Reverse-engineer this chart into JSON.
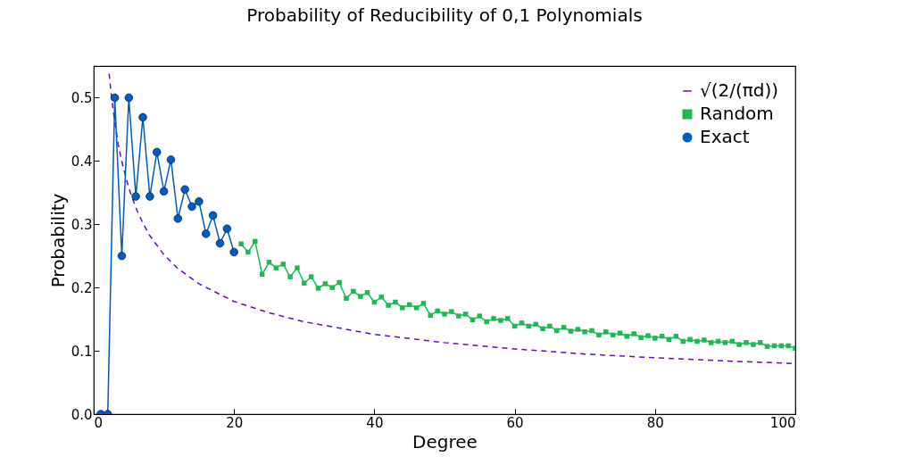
{
  "chart_data": {
    "type": "line",
    "title": "Probability of Reducibility of 0,1 Polynomials",
    "xlabel": "Degree",
    "ylabel": "Probability",
    "xlim": [
      0,
      100
    ],
    "ylim": [
      0,
      0.55
    ],
    "xticks": [
      0,
      20,
      40,
      60,
      80,
      100
    ],
    "yticks": [
      {
        "value": 0,
        "label": "0.0"
      },
      0.1,
      0.2,
      0.3,
      0.4,
      0.5
    ],
    "grid": false,
    "legend": "top right",
    "series": [
      {
        "name": "√(2/(πd))",
        "color": "#6a0dad",
        "marker": "none",
        "line_style": "dashed",
        "x": [
          2.2,
          2.5,
          3,
          3.5,
          4,
          5,
          6,
          7,
          8,
          10,
          12,
          15,
          20,
          25,
          30,
          40,
          50,
          60,
          70,
          80,
          90,
          100
        ],
        "values": [
          0.538,
          0.505,
          0.461,
          0.426,
          0.399,
          0.357,
          0.326,
          0.302,
          0.282,
          0.252,
          0.23,
          0.206,
          0.178,
          0.16,
          0.146,
          0.126,
          0.113,
          0.103,
          0.095,
          0.089,
          0.084,
          0.08
        ]
      },
      {
        "name": "Random",
        "color": "#1db954",
        "marker": "square",
        "line_style": "solid",
        "x": [
          21,
          22,
          23,
          24,
          25,
          26,
          27,
          28,
          29,
          30,
          31,
          32,
          33,
          34,
          35,
          36,
          37,
          38,
          39,
          40,
          41,
          42,
          43,
          44,
          45,
          46,
          47,
          48,
          49,
          50,
          51,
          52,
          53,
          54,
          55,
          56,
          57,
          58,
          59,
          60,
          61,
          62,
          63,
          64,
          65,
          66,
          67,
          68,
          69,
          70,
          71,
          72,
          73,
          74,
          75,
          76,
          77,
          78,
          79,
          80,
          81,
          82,
          83,
          84,
          85,
          86,
          87,
          88,
          89,
          90,
          91,
          92,
          93,
          94,
          95,
          96,
          97,
          98,
          99,
          100
        ],
        "values": [
          0.269,
          0.256,
          0.273,
          0.221,
          0.24,
          0.231,
          0.237,
          0.217,
          0.231,
          0.207,
          0.217,
          0.199,
          0.206,
          0.2,
          0.208,
          0.183,
          0.194,
          0.186,
          0.192,
          0.177,
          0.185,
          0.172,
          0.177,
          0.168,
          0.173,
          0.168,
          0.175,
          0.156,
          0.163,
          0.158,
          0.162,
          0.155,
          0.158,
          0.149,
          0.155,
          0.146,
          0.151,
          0.148,
          0.151,
          0.139,
          0.144,
          0.139,
          0.142,
          0.135,
          0.139,
          0.132,
          0.137,
          0.131,
          0.134,
          0.13,
          0.132,
          0.125,
          0.13,
          0.125,
          0.128,
          0.123,
          0.127,
          0.121,
          0.124,
          0.12,
          0.123,
          0.118,
          0.123,
          0.115,
          0.118,
          0.115,
          0.117,
          0.113,
          0.115,
          0.113,
          0.115,
          0.11,
          0.113,
          0.11,
          0.113,
          0.107,
          0.108,
          0.108,
          0.108,
          0.104
        ]
      },
      {
        "name": "Exact",
        "color": "#005cc5",
        "marker": "circle",
        "line_style": "solid",
        "x": [
          1,
          2,
          3,
          4,
          5,
          6,
          7,
          8,
          9,
          10,
          11,
          12,
          13,
          14,
          15,
          16,
          17,
          18,
          19,
          20
        ],
        "values": [
          0,
          0,
          0.5,
          0.25,
          0.5,
          0.344,
          0.469,
          0.344,
          0.414,
          0.352,
          0.402,
          0.309,
          0.355,
          0.328,
          0.336,
          0.285,
          0.314,
          0.27,
          0.293,
          0.256
        ]
      }
    ]
  }
}
